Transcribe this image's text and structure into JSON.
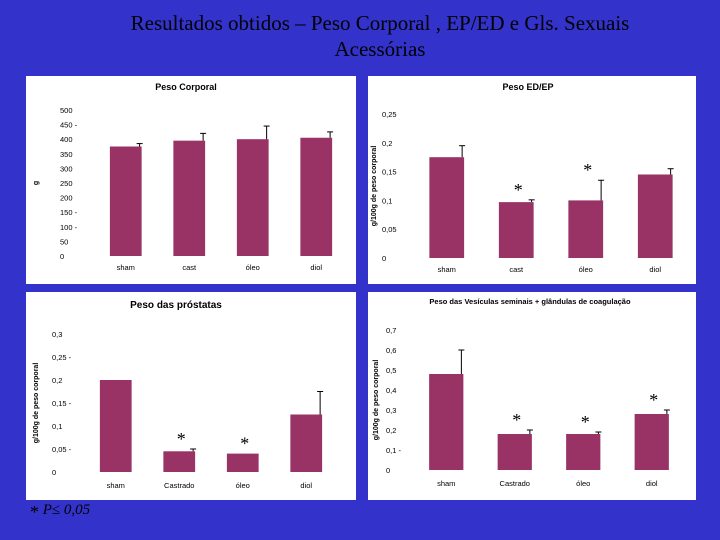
{
  "slide": {
    "title_line1": "Resultados obtidos – Peso Corporal , EP/ED e Gls. Sexuais",
    "title_line2": "Acessórias",
    "footnote_star": "*",
    "footnote_text": "P≤ 0,05"
  },
  "colors": {
    "background": "#3333cc",
    "bar": "#993366",
    "panel": "#ffffff"
  },
  "chart_data": [
    {
      "id": "peso-corporal",
      "type": "bar",
      "title": "Peso Corporal",
      "ylabel": "g",
      "xlabel": "",
      "categories": [
        "sham",
        "cast",
        "óleo",
        "diol"
      ],
      "values": [
        375,
        395,
        400,
        405
      ],
      "errors": [
        10,
        25,
        45,
        20
      ],
      "significant": [
        false,
        false,
        false,
        false
      ],
      "ylim": [
        0,
        500
      ],
      "yticks": [
        "0",
        "50",
        "100 -",
        "150 -",
        "200",
        "250",
        "300",
        "350",
        "400",
        "450 -",
        "500"
      ]
    },
    {
      "id": "peso-ed-ep",
      "type": "bar",
      "title": "Peso ED/EP",
      "ylabel": "g/100g de peso corporal",
      "xlabel": "",
      "categories": [
        "sham",
        "cast",
        "óleo",
        "diol"
      ],
      "values": [
        0.175,
        0.097,
        0.1,
        0.145
      ],
      "errors": [
        0.02,
        0.004,
        0.035,
        0.01
      ],
      "significant": [
        false,
        true,
        true,
        false
      ],
      "ylim": [
        0,
        0.25
      ],
      "yticks": [
        "0",
        "0,05",
        "0,1",
        "0,15",
        "0,2",
        "0,25"
      ]
    },
    {
      "id": "peso-prostatas",
      "type": "bar",
      "title": "Peso das próstatas",
      "ylabel": "g/100g de peso corporal",
      "xlabel": "",
      "categories": [
        "sham",
        "Castrado",
        "óleo",
        "diol"
      ],
      "values": [
        0.2,
        0.045,
        0.04,
        0.125
      ],
      "errors": [
        0,
        0.005,
        0,
        0.05
      ],
      "significant": [
        false,
        true,
        true,
        false
      ],
      "ylim": [
        0,
        0.3
      ],
      "yticks": [
        "0",
        "0,05 -",
        "0,1",
        "0,15 -",
        "0,2",
        "0,25 -",
        "0,3"
      ]
    },
    {
      "id": "peso-vesiculas",
      "type": "bar",
      "title": "Peso das Vesículas seminais + glândulas de coagulação",
      "ylabel": "g/100g de peso corporal",
      "xlabel": "",
      "categories": [
        "sham",
        "Castrado",
        "óleo",
        "diol"
      ],
      "values": [
        0.48,
        0.18,
        0.18,
        0.28
      ],
      "errors": [
        0.12,
        0.02,
        0.01,
        0.02
      ],
      "significant": [
        false,
        true,
        true,
        true
      ],
      "ylim": [
        0,
        0.7
      ],
      "yticks": [
        "0",
        "0,1 -",
        "0,2",
        "0,3",
        "0,4",
        "0,5",
        "0,6",
        "0,7"
      ]
    }
  ]
}
